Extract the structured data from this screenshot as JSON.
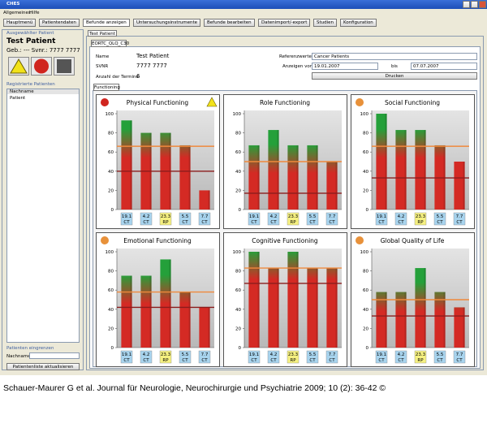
{
  "window": {
    "title": "CHES"
  },
  "menu": [
    "Allgemeines",
    "Hilfe"
  ],
  "toolbar": [
    "Hauptmenü",
    "Patientendaten",
    "Befunde anzeigen",
    "Untersuchungsinstrumente",
    "Befunde bearbeiten",
    "Datenimport/-export",
    "Studien",
    "Konfiguration"
  ],
  "sidebar": {
    "patient_header": "Ausgewählter Patient",
    "patient_name": "Test Patient",
    "patient_info": "Geb.: ---  Svnr.: 7777 7777",
    "list_header": "Registrierte Patienten",
    "list_column": "Nachname",
    "list_rows": [
      "Patient"
    ],
    "filter_header": "Patienten eingrenzen",
    "filter_label": "Nachname",
    "refresh_button": "Patientenliste aktualisieren"
  },
  "patient_tab": "Test Patient",
  "form_tab": "EORTC_QLQ_C30",
  "info": {
    "name_label": "Name",
    "name": "Test Patient",
    "svnr_label": "SVNR",
    "svnr": "7777 7777",
    "appointments_label": "Anzahl der Termine",
    "appointments": "6",
    "reference_label": "Referenzwerte",
    "reference": "Cancer Patients",
    "from_label": "Anzeigen von",
    "from": "19.01.2007",
    "to_label": "bis",
    "to": "07.07.2007",
    "print_button": "Drucken"
  },
  "scale_tab": "Functioning",
  "chart_data": [
    {
      "type": "bar",
      "title": "Physical Functioning",
      "status": "#d0251f",
      "warning": true,
      "categories": [
        "19.1",
        "4.2",
        "23.3",
        "5.5",
        "7.7"
      ],
      "category_types": [
        "CT",
        "CT",
        "RP",
        "CT",
        "CT"
      ],
      "values": [
        93,
        80,
        80,
        67,
        20
      ],
      "reference_lines": [
        {
          "value": 66,
          "color": "#f0893c"
        },
        {
          "value": 40,
          "color": "#8b1c1c"
        }
      ],
      "ylim": [
        0,
        100
      ],
      "yticks": [
        0,
        20,
        40,
        60,
        80,
        100
      ]
    },
    {
      "type": "bar",
      "title": "Role Functioning",
      "status": null,
      "warning": false,
      "categories": [
        "19.1",
        "4.2",
        "23.3",
        "5.5",
        "7.7"
      ],
      "category_types": [
        "CT",
        "CT",
        "RP",
        "CT",
        "CT"
      ],
      "values": [
        67,
        83,
        67,
        67,
        50
      ],
      "reference_lines": [
        {
          "value": 50,
          "color": "#f0893c"
        },
        {
          "value": 17,
          "color": "#8b1c1c"
        }
      ],
      "ylim": [
        0,
        100
      ],
      "yticks": [
        0,
        20,
        40,
        60,
        80,
        100
      ]
    },
    {
      "type": "bar",
      "title": "Social Functioning",
      "status": "#e8913a",
      "warning": false,
      "categories": [
        "19.1",
        "4.2",
        "23.3",
        "5.5",
        "7.7"
      ],
      "category_types": [
        "CT",
        "CT",
        "RP",
        "CT",
        "CT"
      ],
      "values": [
        100,
        83,
        83,
        67,
        50
      ],
      "reference_lines": [
        {
          "value": 66,
          "color": "#f0893c"
        },
        {
          "value": 33,
          "color": "#8b1c1c"
        }
      ],
      "ylim": [
        0,
        100
      ],
      "yticks": [
        0,
        20,
        40,
        60,
        80,
        100
      ]
    },
    {
      "type": "bar",
      "title": "Emotional Functioning",
      "status": "#e8913a",
      "warning": false,
      "categories": [
        "19.1",
        "4.2",
        "23.3",
        "5.5",
        "7.7"
      ],
      "category_types": [
        "CT",
        "CT",
        "RP",
        "CT",
        "CT"
      ],
      "values": [
        75,
        75,
        92,
        58,
        42
      ],
      "reference_lines": [
        {
          "value": 58,
          "color": "#f0893c"
        },
        {
          "value": 42,
          "color": "#8b1c1c"
        }
      ],
      "ylim": [
        0,
        100
      ],
      "yticks": [
        0,
        20,
        40,
        60,
        80,
        100
      ]
    },
    {
      "type": "bar",
      "title": "Cognitive Functioning",
      "status": null,
      "warning": false,
      "categories": [
        "19.1",
        "4.2",
        "23.3",
        "5.5",
        "7.7"
      ],
      "category_types": [
        "CT",
        "CT",
        "RP",
        "CT",
        "CT"
      ],
      "values": [
        100,
        83,
        100,
        83,
        83
      ],
      "reference_lines": [
        {
          "value": 83,
          "color": "#f0893c"
        },
        {
          "value": 67,
          "color": "#8b1c1c"
        }
      ],
      "ylim": [
        0,
        100
      ],
      "yticks": [
        0,
        20,
        40,
        60,
        80,
        100
      ]
    },
    {
      "type": "bar",
      "title": "Global Quality of Life",
      "status": "#e8913a",
      "warning": false,
      "categories": [
        "19.1",
        "4.2",
        "23.3",
        "5.5",
        "7.7"
      ],
      "category_types": [
        "CT",
        "CT",
        "RP",
        "CT",
        "CT"
      ],
      "values": [
        58,
        58,
        83,
        58,
        42
      ],
      "reference_lines": [
        {
          "value": 50,
          "color": "#f0893c"
        },
        {
          "value": 33,
          "color": "#8b1c1c"
        }
      ],
      "ylim": [
        0,
        100
      ],
      "yticks": [
        0,
        20,
        40,
        60,
        80,
        100
      ]
    }
  ],
  "caption": "Schauer-Maurer G et al. Journal für Neurologie, Neurochirurgie und Psychiatrie 2009; 10 (2): 36-42 ©"
}
